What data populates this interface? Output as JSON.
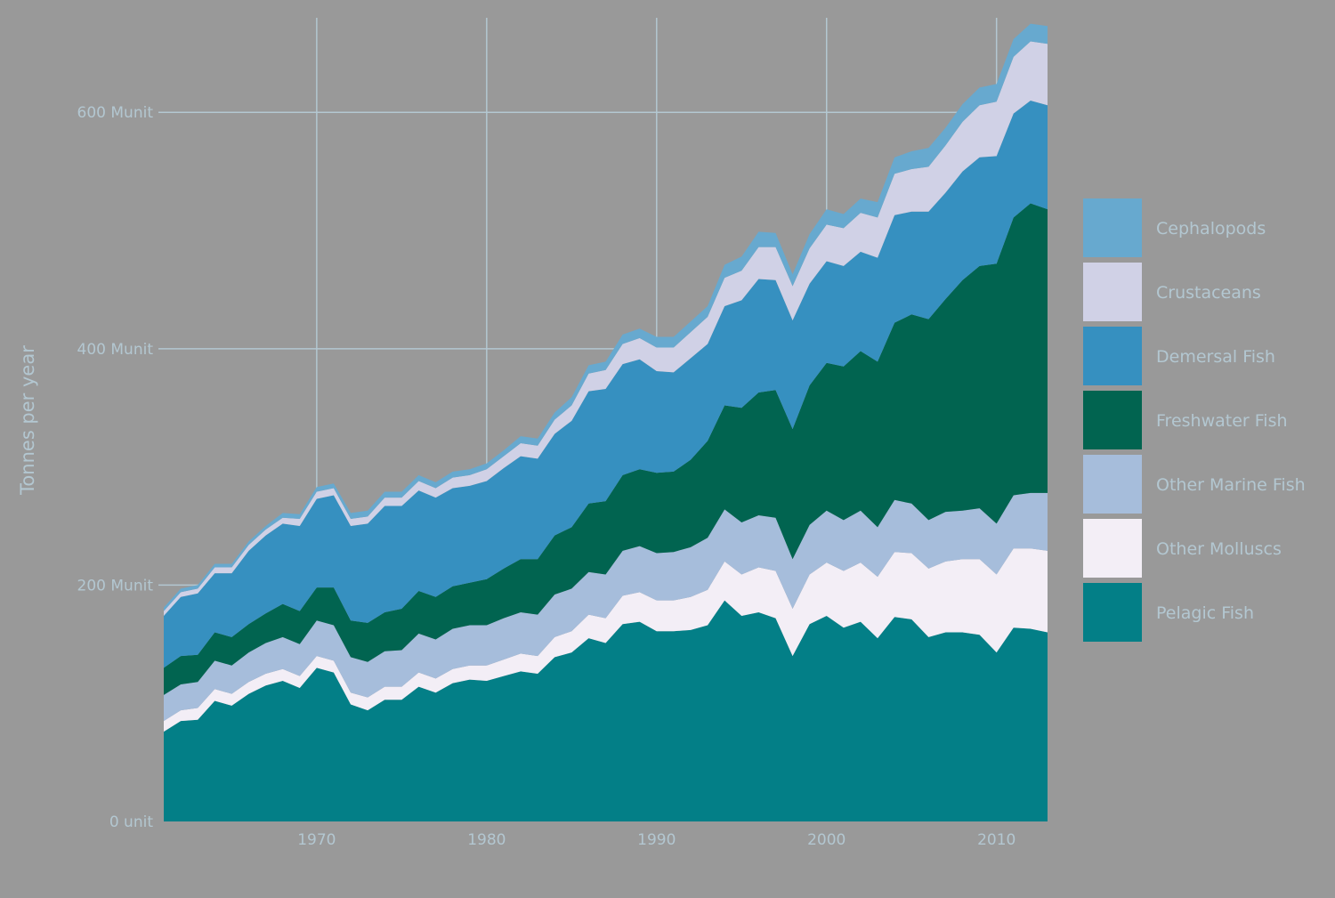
{
  "chart_data": {
    "type": "area",
    "stacked": true,
    "title": "",
    "xlabel": "",
    "ylabel": "Tonnes per year",
    "xlim": [
      1961,
      2013
    ],
    "ylim": [
      0,
      680
    ],
    "x_ticks": [
      1970,
      1980,
      1990,
      2000,
      2010
    ],
    "y_ticks": [
      {
        "value": 0,
        "label": "0 unit"
      },
      {
        "value": 200,
        "label": "200 Munit"
      },
      {
        "value": 400,
        "label": "400 Munit"
      },
      {
        "value": 600,
        "label": "600 Munit"
      }
    ],
    "grid": true,
    "legend_position": "right",
    "x": [
      1961,
      1962,
      1963,
      1964,
      1965,
      1966,
      1967,
      1968,
      1969,
      1970,
      1971,
      1972,
      1973,
      1974,
      1975,
      1976,
      1977,
      1978,
      1979,
      1980,
      1981,
      1982,
      1983,
      1984,
      1985,
      1986,
      1987,
      1988,
      1989,
      1990,
      1991,
      1992,
      1993,
      1994,
      1995,
      1996,
      1997,
      1998,
      1999,
      2000,
      2001,
      2002,
      2003,
      2004,
      2005,
      2006,
      2007,
      2008,
      2009,
      2010,
      2011,
      2012,
      2013
    ],
    "series": [
      {
        "name": "Pelagic Fish",
        "color": "#037f87",
        "values": [
          76,
          85,
          86,
          102,
          98,
          108,
          115,
          119,
          113,
          130,
          126,
          99,
          94,
          103,
          103,
          114,
          109,
          117,
          120,
          119,
          123,
          127,
          125,
          139,
          143,
          155,
          151,
          167,
          169,
          161,
          161,
          162,
          166,
          187,
          174,
          177,
          172,
          140,
          167,
          174,
          164,
          169,
          155,
          173,
          171,
          156,
          160,
          160,
          158,
          143,
          164,
          163,
          160
        ]
      },
      {
        "name": "Other Molluscs",
        "color": "#f3eef6",
        "values": [
          9,
          9,
          10,
          10,
          10,
          10,
          10,
          10,
          10,
          10,
          10,
          10,
          11,
          11,
          11,
          12,
          12,
          12,
          12,
          13,
          14,
          15,
          15,
          17,
          18,
          20,
          21,
          24,
          25,
          26,
          26,
          28,
          30,
          33,
          35,
          38,
          40,
          40,
          42,
          45,
          48,
          50,
          52,
          55,
          56,
          58,
          60,
          62,
          64,
          66,
          67,
          68,
          69
        ]
      },
      {
        "name": "Other Marine Fish",
        "color": "#a6bddb",
        "values": [
          22,
          22,
          22,
          24,
          24,
          25,
          26,
          27,
          27,
          30,
          30,
          30,
          30,
          30,
          31,
          33,
          33,
          34,
          34,
          34,
          35,
          35,
          35,
          36,
          36,
          36,
          37,
          38,
          39,
          40,
          41,
          42,
          44,
          44,
          44,
          44,
          45,
          42,
          42,
          44,
          43,
          44,
          42,
          44,
          42,
          41,
          42,
          41,
          43,
          43,
          45,
          47,
          49
        ]
      },
      {
        "name": "Freshwater Fish",
        "color": "#016450",
        "values": [
          23,
          24,
          23,
          24,
          24,
          24,
          25,
          28,
          28,
          28,
          32,
          31,
          33,
          33,
          35,
          36,
          36,
          36,
          36,
          39,
          42,
          45,
          47,
          50,
          52,
          58,
          62,
          64,
          65,
          68,
          68,
          74,
          82,
          88,
          97,
          104,
          108,
          110,
          118,
          125,
          130,
          135,
          140,
          150,
          160,
          170,
          180,
          195,
          205,
          220,
          235,
          245,
          240
        ]
      },
      {
        "name": "Demersal Fish",
        "color": "#3690c0",
        "values": [
          44,
          50,
          52,
          50,
          54,
          62,
          66,
          68,
          72,
          75,
          78,
          80,
          84,
          90,
          87,
          85,
          84,
          83,
          82,
          83,
          85,
          87,
          85,
          86,
          90,
          95,
          95,
          94,
          93,
          86,
          84,
          86,
          82,
          84,
          91,
          96,
          93,
          92,
          86,
          86,
          85,
          84,
          88,
          91,
          87,
          91,
          90,
          92,
          92,
          91,
          88,
          87,
          88
        ]
      },
      {
        "name": "Crustaceans",
        "color": "#d0d1e6",
        "values": [
          4,
          4,
          4,
          5,
          5,
          5,
          5,
          5,
          6,
          6,
          6,
          6,
          6,
          7,
          7,
          8,
          8,
          9,
          9,
          10,
          10,
          11,
          11,
          12,
          13,
          15,
          16,
          17,
          18,
          20,
          21,
          22,
          23,
          24,
          25,
          27,
          28,
          29,
          30,
          31,
          32,
          33,
          34,
          35,
          36,
          38,
          40,
          42,
          44,
          46,
          48,
          50,
          52
        ]
      },
      {
        "name": "Cephalopods",
        "color": "#67a9cf",
        "values": [
          3,
          3,
          3,
          3,
          3,
          3,
          3,
          4,
          4,
          4,
          4,
          5,
          5,
          5,
          5,
          5,
          5,
          5,
          5,
          5,
          5,
          6,
          6,
          6,
          7,
          7,
          7,
          8,
          8,
          9,
          9,
          9,
          9,
          11,
          12,
          13,
          12,
          10,
          12,
          13,
          12,
          12,
          13,
          14,
          15,
          16,
          15,
          15,
          15,
          15,
          15,
          15,
          15
        ]
      }
    ]
  }
}
